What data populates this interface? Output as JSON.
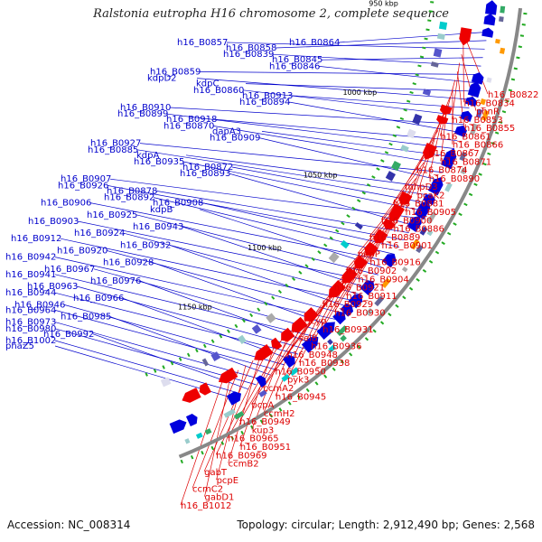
{
  "title": "Ralstonia eutropha H16 chromosome 2, complete sequence",
  "footer": {
    "accession": "Accession: NC_008314",
    "topology": "Topology: circular; Length: 2,912,490 bp; Genes: 2,568"
  },
  "colors": {
    "left_labels": "#0000cc",
    "right_labels": "#dd0000",
    "backbone": "#888888",
    "minus_strand": "#0000dd",
    "plus_strand": "#ee0000",
    "tick_marker": "#22aa22"
  },
  "scale_labels": [
    "950 kbp",
    "1000 kbp",
    "1050 kbp",
    "1100 kbp",
    "1150 kbp"
  ],
  "left_labels": [
    "h16_B0864",
    "h16_B0858",
    "h16_B0857",
    "h16_B0845",
    "h16_B0839",
    "h16_B0859",
    "h16_B0846",
    "kdpC",
    "kdpD2",
    "h16_B0913",
    "h16_B0860",
    "h16_B0910",
    "h16_B0894",
    "h16_B0918",
    "h16_B0899",
    "dapA3",
    "h16_B0870",
    "h16_B0927",
    "h16_B0909",
    "kdpA",
    "h16_B0885",
    "h16_B0872",
    "h16_B0935",
    "h16_B0907",
    "h16_B0893",
    "h16_B0878",
    "h16_B0926",
    "h16_B0908",
    "h16_B0892",
    "h16_B0906",
    "kdpB",
    "h16_B0925",
    "h16_B0903",
    "h16_B0943",
    "h16_B0924",
    "h16_B0912",
    "h16_B0932",
    "h16_B0920",
    "h16_B0942",
    "h16_B0928",
    "h16_B0967",
    "h16_B0941",
    "h16_B0976",
    "h16_B0963",
    "h16_B0944",
    "h16_B0966",
    "h16_B0946",
    "h16_B0964",
    "h16_B0985",
    "h16_B0973",
    "h16_B0980",
    "h16_B0992",
    "h16_B1002",
    "phaZ5"
  ],
  "right_labels": [
    "h16_B0822",
    "h16_B0834",
    "phnR",
    "h16_B0853",
    "h16_B0855",
    "h16_B0861",
    "h16_B0866",
    "h16_B0867",
    "h16_B0871",
    "h16_B0874",
    "h16_B0890",
    "mhpD3",
    "pcaK2",
    "h16_B0881",
    "h16_B0905",
    "h16_B0900",
    "h16_B0886",
    "h16_B0889",
    "h16_B0901",
    "pepP",
    "h16_B0916",
    "h16_B0902",
    "h16_B0904",
    "h16_B0921",
    "h16_B0911",
    "h16_B0929",
    "h16_B0930",
    "cyp",
    "h16_B0931",
    "selB",
    "h16_B0936",
    "h16_B0948",
    "h16_B0938",
    "h16_B0950",
    "pyk3",
    "ccmA2",
    "h16_B0945",
    "pcpA",
    "ccmH2",
    "h16_B0949",
    "kup3",
    "h16_B0965",
    "h16_B0951",
    "h16_B0969",
    "ccmB2",
    "gabT",
    "pcpE",
    "ccmC2",
    "gabD1",
    "h16_B1012"
  ]
}
